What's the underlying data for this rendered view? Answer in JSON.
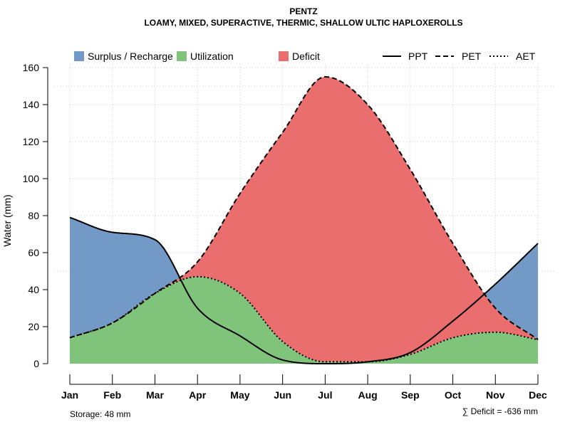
{
  "chart_data": {
    "type": "area",
    "title": "PENTZ",
    "subtitle": "LOAMY, MIXED, SUPERACTIVE, THERMIC, SHALLOW ULTIC HAPLOXEROLLS",
    "xlabel": "",
    "ylabel": "Water (mm)",
    "ylim": [
      0,
      160
    ],
    "yticks": [
      0,
      20,
      40,
      60,
      80,
      100,
      120,
      140,
      160
    ],
    "grid": true,
    "categories": [
      "Jan",
      "Feb",
      "Mar",
      "Apr",
      "May",
      "Jun",
      "Jul",
      "Aug",
      "Sep",
      "Oct",
      "Nov",
      "Dec"
    ],
    "series": [
      {
        "name": "PPT",
        "line_style": "solid",
        "values": [
          79,
          71,
          67,
          30,
          15,
          2,
          0,
          1,
          6,
          23,
          43,
          65
        ]
      },
      {
        "name": "PET",
        "line_style": "dashed",
        "values": [
          14,
          22,
          38,
          55,
          92,
          125,
          155,
          140,
          105,
          65,
          30,
          13
        ]
      },
      {
        "name": "AET",
        "line_style": "dotted",
        "values": [
          14,
          22,
          38,
          47,
          38,
          12,
          1,
          1,
          5,
          14,
          17,
          13
        ]
      }
    ],
    "areas": [
      {
        "name": "Surplus / Recharge",
        "color": "#7399C6"
      },
      {
        "name": "Utilization",
        "color": "#7FC47A"
      },
      {
        "name": "Deficit",
        "color": "#EB6E6E"
      }
    ],
    "legend_placement": "top",
    "reference_lines": [
      {
        "type": "horizontal",
        "value": 150,
        "style": "dotted-gray"
      },
      {
        "type": "horizontal",
        "value": 50,
        "style": "dotted-gray"
      }
    ],
    "annotations": {
      "storage": "Storage: 48 mm",
      "deficit": "∑ Deficit = -636 mm"
    }
  },
  "colors": {
    "surplus": "#7399C6",
    "utilization": "#7FC47A",
    "deficit": "#EB6E6E",
    "grid": "#CCCCCC"
  }
}
